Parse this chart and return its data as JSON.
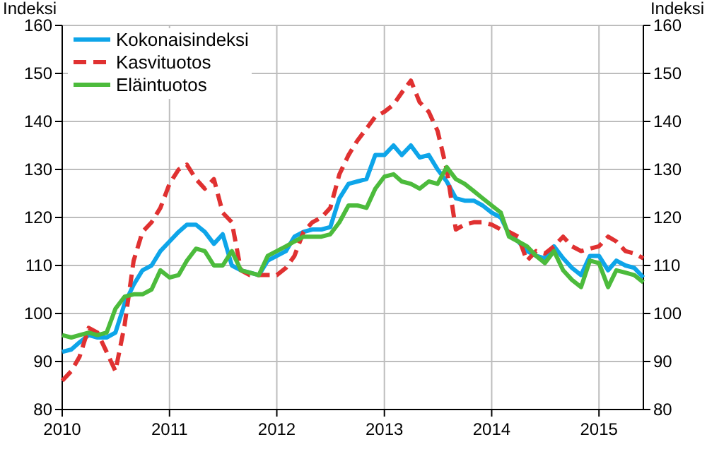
{
  "chart_data": {
    "type": "line",
    "ylabel": "Indeksi",
    "y2label": "Indeksi",
    "legend": "top left",
    "grid": true,
    "xlim": [
      "2010-01",
      "2015-06"
    ],
    "xticks": [
      "2010",
      "2011",
      "2012",
      "2013",
      "2014",
      "2015"
    ],
    "ylim": [
      80,
      160
    ],
    "yticks": [
      80,
      90,
      100,
      110,
      120,
      130,
      140,
      150,
      160
    ],
    "y2lim": [
      80,
      160
    ],
    "y2ticks": [
      80,
      90,
      100,
      110,
      120,
      130,
      140,
      150,
      160
    ],
    "x": [
      "2010-01",
      "2010-02",
      "2010-03",
      "2010-04",
      "2010-05",
      "2010-06",
      "2010-07",
      "2010-08",
      "2010-09",
      "2010-10",
      "2010-11",
      "2010-12",
      "2011-01",
      "2011-02",
      "2011-03",
      "2011-04",
      "2011-05",
      "2011-06",
      "2011-07",
      "2011-08",
      "2011-09",
      "2011-10",
      "2011-11",
      "2011-12",
      "2012-01",
      "2012-02",
      "2012-03",
      "2012-04",
      "2012-05",
      "2012-06",
      "2012-07",
      "2012-08",
      "2012-09",
      "2012-10",
      "2012-11",
      "2012-12",
      "2013-01",
      "2013-02",
      "2013-03",
      "2013-04",
      "2013-05",
      "2013-06",
      "2013-07",
      "2013-08",
      "2013-09",
      "2013-10",
      "2013-11",
      "2013-12",
      "2014-01",
      "2014-02",
      "2014-03",
      "2014-04",
      "2014-05",
      "2014-06",
      "2014-07",
      "2014-08",
      "2014-09",
      "2014-10",
      "2014-11",
      "2014-12",
      "2015-01",
      "2015-02",
      "2015-03",
      "2015-04",
      "2015-05",
      "2015-06"
    ],
    "series": [
      {
        "name": "Kokonaisindeksi",
        "color": "#0ea5e9",
        "line_style": "solid",
        "values": [
          92,
          92.5,
          94,
          95.5,
          95,
          95,
          96,
          102,
          106,
          109,
          110,
          113,
          115,
          117,
          118.5,
          118.5,
          117,
          114.5,
          116.5,
          110,
          109,
          108.5,
          108,
          111,
          112,
          113,
          116,
          117,
          117.5,
          117.5,
          118,
          124,
          127,
          127.5,
          128,
          133,
          133,
          135,
          133,
          135,
          132.5,
          133,
          130,
          127.5,
          124,
          123.5,
          123.5,
          122.5,
          121,
          120,
          116.5,
          115,
          113,
          112,
          111.5,
          114,
          111.5,
          109.5,
          108,
          112,
          112,
          109,
          111,
          110,
          109.5,
          107.5
        ]
      },
      {
        "name": "Kasvituotos",
        "color": "#e03131",
        "line_style": "dashed",
        "values": [
          86,
          88,
          91,
          97,
          96,
          92,
          88,
          97.5,
          111,
          117,
          119,
          122,
          127,
          130,
          131,
          128,
          126,
          128,
          121,
          119,
          109,
          108,
          108,
          108,
          108,
          109.5,
          112,
          117,
          119,
          120,
          122,
          129,
          133,
          136,
          138.5,
          141,
          142,
          143.5,
          146,
          148.5,
          144,
          142,
          138,
          130,
          117.5,
          118.5,
          119,
          119,
          118.5,
          117.5,
          117,
          116,
          111,
          113,
          112.5,
          114,
          116,
          114,
          113,
          113.5,
          114,
          116,
          115,
          113,
          112.5,
          111.5
        ]
      },
      {
        "name": "Eläintuotos",
        "color": "#4cbb3c",
        "line_style": "solid",
        "values": [
          95.5,
          95,
          95.5,
          96,
          95.5,
          96,
          101,
          103.5,
          104,
          104,
          105,
          109,
          107.5,
          108,
          111,
          113.5,
          113,
          110,
          110,
          113,
          109,
          108.5,
          108,
          112,
          113,
          114,
          115,
          116,
          116,
          116,
          116.5,
          119,
          122.5,
          122.5,
          122,
          126,
          128.5,
          129,
          127.5,
          127,
          126,
          127.5,
          127,
          130.5,
          128,
          127,
          125.5,
          124,
          122.5,
          121,
          116,
          115,
          114,
          112,
          110.5,
          113,
          109,
          107,
          105.5,
          111,
          110.5,
          105.5,
          109,
          108.5,
          108,
          106.5
        ]
      }
    ]
  }
}
